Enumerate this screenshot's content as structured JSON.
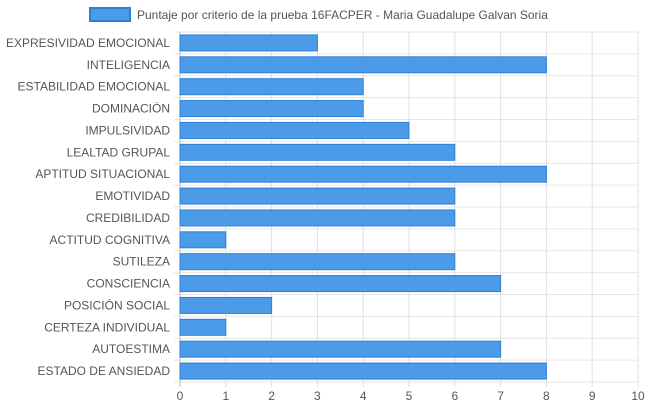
{
  "chart_data": {
    "type": "bar",
    "orientation": "horizontal",
    "legend_position": "top",
    "grid": true,
    "xlim": [
      0,
      10
    ],
    "x_ticks": [
      0,
      1,
      2,
      3,
      4,
      5,
      6,
      7,
      8,
      9,
      10
    ],
    "categories": [
      "EXPRESIVIDAD EMOCIONAL",
      "INTELIGENCIA",
      "ESTABILIDAD EMOCIONAL",
      "DOMINACIÓN",
      "IMPULSIVIDAD",
      "LEALTAD GRUPAL",
      "APTITUD SITUACIONAL",
      "EMOTIVIDAD",
      "CREDIBILIDAD",
      "ACTITUD COGNITIVA",
      "SUTILEZA",
      "CONSCIENCIA",
      "POSICIÓN SOCIAL",
      "CERTEZA INDIVIDUAL",
      "AUTOESTIMA",
      "ESTADO DE ANSIEDAD"
    ],
    "series": [
      {
        "name": "Puntaje por criterio de la prueba 16FACPER - Maria Guadalupe Galvan Soria",
        "color": "#4c9be8",
        "border_color": "#2f7fd8",
        "values": [
          3,
          8,
          4,
          4,
          5,
          6,
          8,
          6,
          6,
          1,
          6,
          7,
          2,
          1,
          7,
          8
        ]
      }
    ]
  }
}
